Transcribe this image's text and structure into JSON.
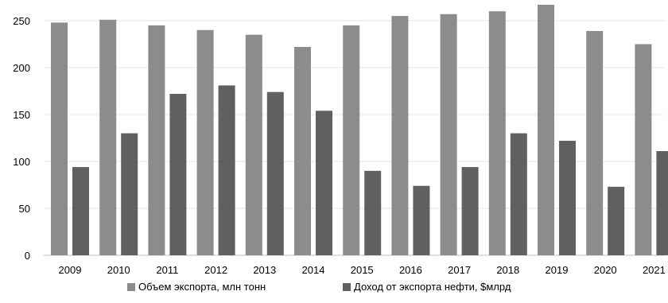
{
  "chart_data": {
    "type": "bar",
    "title": "",
    "xlabel": "",
    "ylabel": "",
    "ylim": [
      0,
      250
    ],
    "yticks": [
      0,
      50,
      100,
      150,
      200,
      250
    ],
    "grid": true,
    "legend_position": "bottom",
    "categories": [
      "2009",
      "2010",
      "2011",
      "2012",
      "2013",
      "2014",
      "2015",
      "2016",
      "2017",
      "2018",
      "2019",
      "2020",
      "2021"
    ],
    "series": [
      {
        "name": "Объем экспорта, млн тонн",
        "color": "#8c8c8c",
        "values": [
          248,
          251,
          245,
          240,
          235,
          222,
          245,
          255,
          257,
          260,
          267,
          239,
          225
        ]
      },
      {
        "name": "Доход от экспорта нефти, $млрд",
        "color": "#606060",
        "values": [
          94,
          130,
          172,
          181,
          174,
          154,
          90,
          74,
          94,
          130,
          122,
          73,
          111
        ]
      }
    ]
  }
}
